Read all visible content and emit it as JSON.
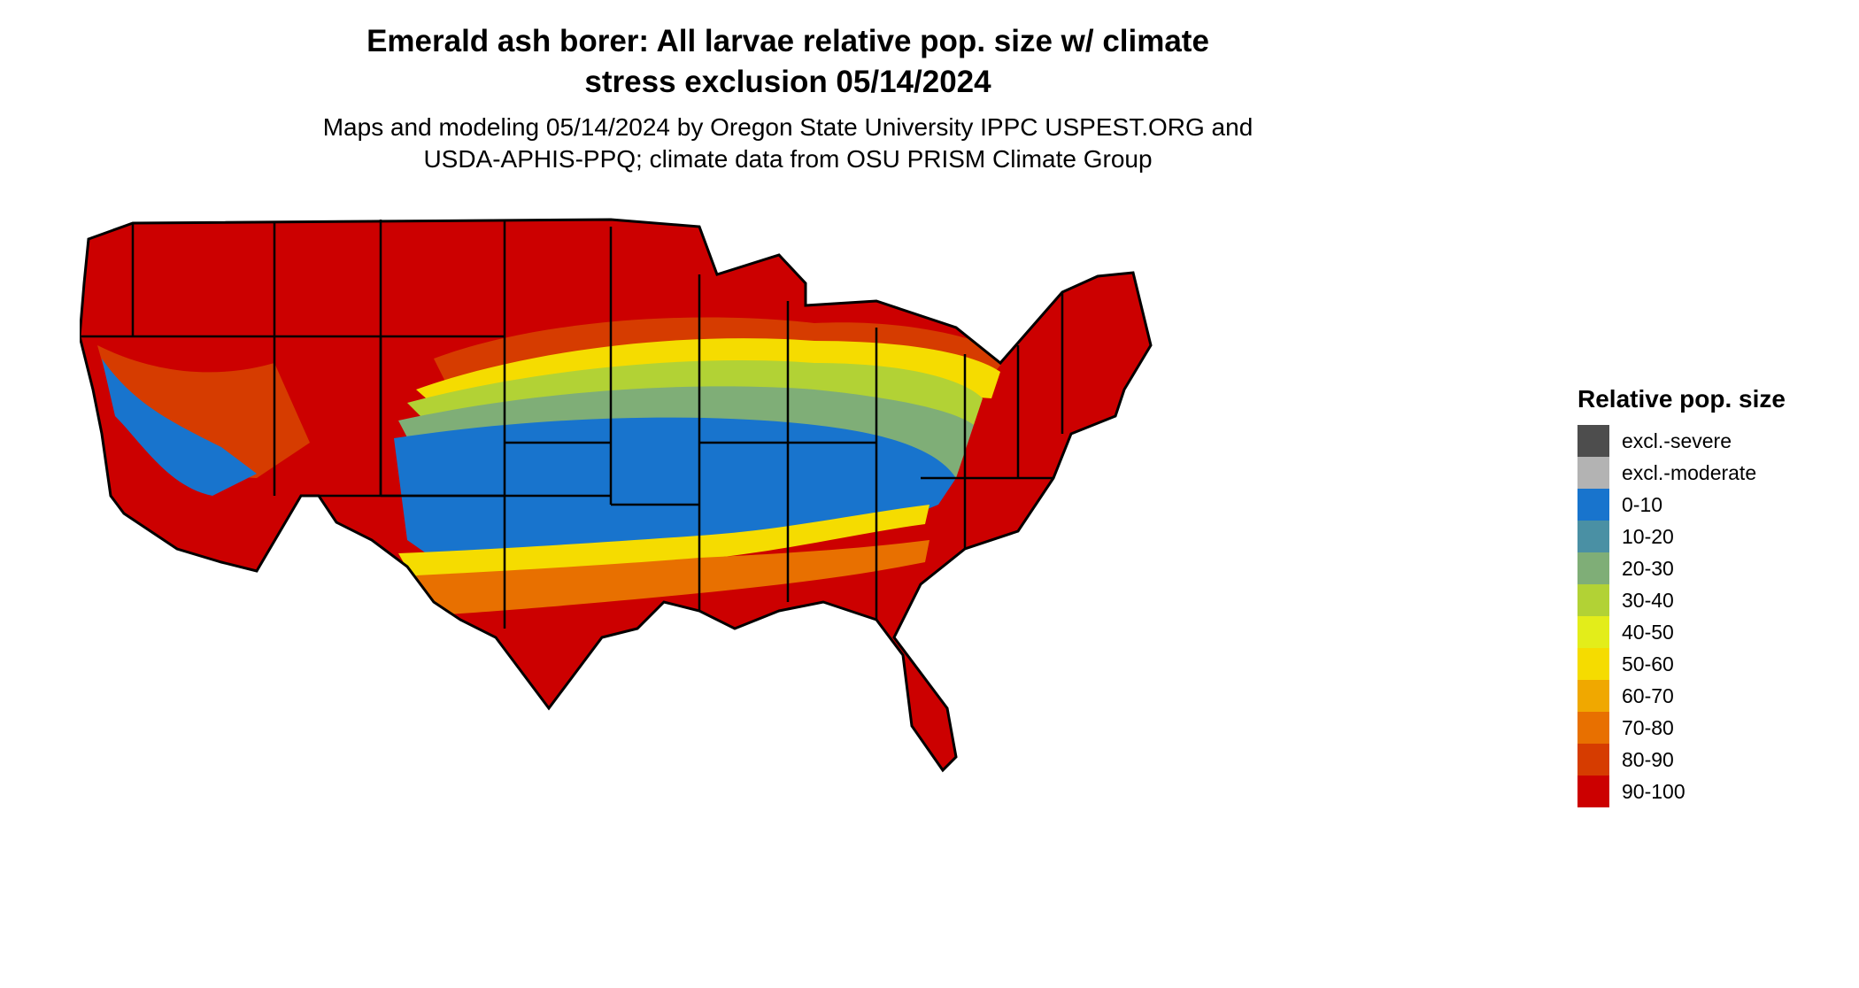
{
  "title": {
    "line1": "Emerald ash borer: All larvae relative pop. size w/ climate",
    "line2": "stress exclusion 05/14/2024"
  },
  "subtitle": {
    "line1": "Maps and modeling 05/14/2024 by Oregon State University IPPC USPEST.ORG and",
    "line2": "USDA-APHIS-PPQ; climate data from OSU PRISM Climate Group"
  },
  "map": {
    "region": "Contiguous United States",
    "highest_class_color": "#cc0000",
    "pattern": "90-100 across the northern and western states; lowest classes (0-10, 10-20) across the south-central and southeastern interior; 90-100 again along the Gulf coast and Florida"
  },
  "legend": {
    "title": "Relative pop. size",
    "items": [
      {
        "label": "excl.-severe",
        "color": "#4d4d4d"
      },
      {
        "label": "excl.-moderate",
        "color": "#b3b3b3"
      },
      {
        "label": "0-10",
        "color": "#1874cd"
      },
      {
        "label": "10-20",
        "color": "#4a90a4"
      },
      {
        "label": "20-30",
        "color": "#7fae77"
      },
      {
        "label": "30-40",
        "color": "#b2d235"
      },
      {
        "label": "40-50",
        "color": "#e3ed1a"
      },
      {
        "label": "50-60",
        "color": "#f5dc00"
      },
      {
        "label": "60-70",
        "color": "#f0a800"
      },
      {
        "label": "70-80",
        "color": "#e87000"
      },
      {
        "label": "80-90",
        "color": "#d63c00"
      },
      {
        "label": "90-100",
        "color": "#cc0000"
      }
    ]
  }
}
